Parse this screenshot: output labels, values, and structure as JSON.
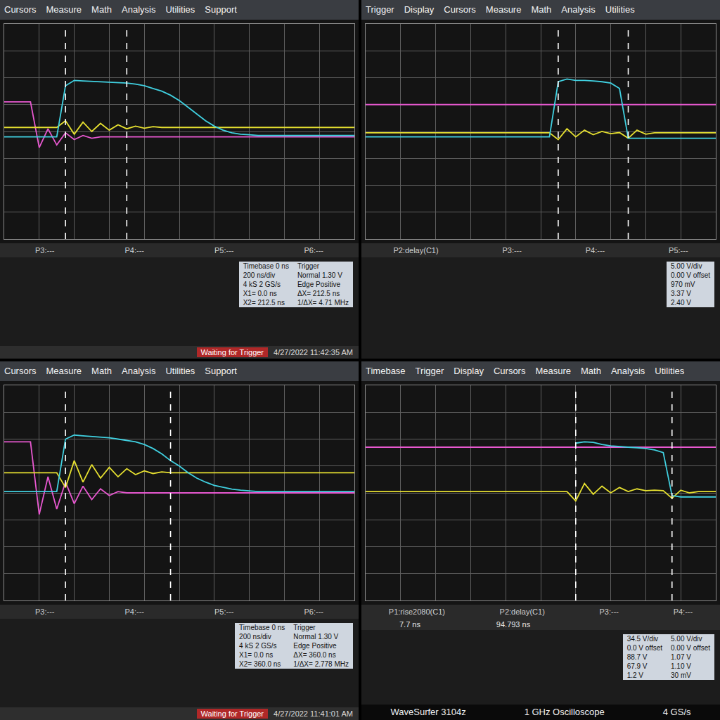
{
  "chart_data": [
    {
      "type": "line",
      "menu": [
        "Cursors",
        "Measure",
        "Math",
        "Analysis",
        "Utilities",
        "Support"
      ],
      "x": [
        0,
        0.25,
        0.5,
        0.75,
        1,
        1.25,
        1.5,
        1.75,
        2,
        2.25,
        2.5,
        2.75,
        3,
        3.25,
        3.5,
        3.75,
        4,
        4.25,
        4.5,
        4.75,
        5,
        5.25,
        5.5,
        5.75,
        6,
        6.25,
        6.5,
        6.75,
        7,
        7.25,
        7.5,
        7.75,
        8,
        8.25,
        8.5,
        8.75,
        9,
        9.25,
        9.5,
        9.75,
        10
      ],
      "xlim": [
        0,
        10
      ],
      "ylim": [
        -4,
        4
      ],
      "xticks": [
        0,
        1,
        2,
        3,
        4,
        5,
        6,
        7,
        8,
        9,
        10
      ],
      "yticks": [
        -4,
        -3,
        -2,
        -1,
        0,
        1,
        2,
        3,
        4
      ],
      "tick_labels": false,
      "grid": true,
      "cursors": [
        1.75,
        3.5
      ],
      "series": [
        {
          "color": "#e858d0",
          "values": [
            1.1,
            1.1,
            1.1,
            1.1,
            -0.6,
            0.1,
            -0.5,
            -0.05,
            -0.3,
            -0.15,
            -0.25,
            -0.2,
            -0.2,
            -0.2,
            -0.2,
            -0.2,
            -0.2,
            -0.2,
            -0.2,
            -0.2,
            -0.2,
            -0.2,
            -0.2,
            -0.2,
            -0.2,
            -0.2,
            -0.2,
            -0.2,
            -0.2,
            -0.2,
            -0.2,
            -0.2,
            -0.2,
            -0.2,
            -0.2,
            -0.2,
            -0.2,
            -0.2,
            -0.2,
            -0.2,
            -0.2
          ]
        },
        {
          "color": "#e6e030",
          "values": [
            0.15,
            0.15,
            0.15,
            0.15,
            0.15,
            0.15,
            0.15,
            0.4,
            -0.1,
            0.35,
            0.0,
            0.3,
            0.05,
            0.25,
            0.1,
            0.2,
            0.12,
            0.18,
            0.15,
            0.15,
            0.15,
            0.15,
            0.15,
            0.15,
            0.15,
            0.15,
            0.15,
            0.15,
            0.15,
            0.15,
            0.15,
            0.15,
            0.15,
            0.15,
            0.15,
            0.15,
            0.15,
            0.15,
            0.15,
            0.15,
            0.15
          ]
        },
        {
          "color": "#40d0e0",
          "values": [
            -0.2,
            -0.2,
            -0.2,
            -0.2,
            -0.2,
            -0.2,
            -0.2,
            1.7,
            1.9,
            1.88,
            1.86,
            1.85,
            1.84,
            1.82,
            1.8,
            1.76,
            1.7,
            1.6,
            1.5,
            1.35,
            1.15,
            0.9,
            0.65,
            0.4,
            0.2,
            0.05,
            -0.05,
            -0.1,
            -0.12,
            -0.15,
            -0.15,
            -0.15,
            -0.15,
            -0.15,
            -0.15,
            -0.15,
            -0.15,
            -0.15,
            -0.15,
            -0.15,
            -0.15
          ]
        }
      ],
      "footer": [
        "P3:---",
        "P4:---",
        "P5:---",
        "P6:---"
      ],
      "info": [
        [
          "Timebase 0 ns",
          "Trigger"
        ],
        [
          "200 ns/div",
          "Normal 1.30 V"
        ],
        [
          "4 kS  2 GS/s",
          "Edge Positive"
        ],
        [
          "X1= 0.0 ns",
          "ΔX= 212.5 ns"
        ],
        [
          "X2= 212.5 ns",
          "1/ΔX= 4.71 MHz"
        ]
      ],
      "status": "Waiting for Trigger",
      "timestamp": "4/27/2022 11:42:35 AM"
    },
    {
      "type": "line",
      "menu": [
        "Trigger",
        "Display",
        "Cursors",
        "Measure",
        "Math",
        "Analysis",
        "Utilities"
      ],
      "x": [
        0,
        0.25,
        0.5,
        0.75,
        1,
        1.25,
        1.5,
        1.75,
        2,
        2.25,
        2.5,
        2.75,
        3,
        3.25,
        3.5,
        3.75,
        4,
        4.25,
        4.5,
        4.75,
        5,
        5.25,
        5.5,
        5.75,
        6,
        6.25,
        6.5,
        6.75,
        7,
        7.25,
        7.5,
        7.75,
        8,
        8.25,
        8.5,
        8.75,
        9,
        9.25,
        9.5,
        9.75,
        10
      ],
      "xlim": [
        0,
        10
      ],
      "ylim": [
        -4,
        4
      ],
      "xticks": [
        0,
        1,
        2,
        3,
        4,
        5,
        6,
        7,
        8,
        9,
        10
      ],
      "yticks": [
        -4,
        -3,
        -2,
        -1,
        0,
        1,
        2,
        3,
        4
      ],
      "tick_labels": false,
      "grid": true,
      "cursors": [
        5.5,
        7.5
      ],
      "series": [
        {
          "color": "#e858d0",
          "values": [
            1.0,
            1.0,
            1.0,
            1.0,
            1.0,
            1.0,
            1.0,
            1.0,
            1.0,
            1.0,
            1.0,
            1.0,
            1.0,
            1.0,
            1.0,
            1.0,
            1.0,
            1.0,
            1.0,
            1.0,
            1.0,
            1.0,
            1.0,
            1.0,
            1.0,
            1.0,
            1.0,
            1.0,
            1.0,
            1.0,
            1.0,
            1.0,
            1.0,
            1.0,
            1.0,
            1.0,
            1.0,
            1.0,
            1.0,
            1.0,
            1.0
          ]
        },
        {
          "color": "#e6e030",
          "values": [
            -0.05,
            -0.05,
            -0.05,
            -0.05,
            -0.05,
            -0.05,
            -0.05,
            -0.05,
            -0.05,
            -0.05,
            -0.05,
            -0.05,
            -0.05,
            -0.05,
            -0.05,
            -0.05,
            -0.05,
            -0.05,
            -0.05,
            -0.05,
            -0.05,
            -0.05,
            -0.3,
            0.1,
            -0.2,
            0.05,
            -0.12,
            0.0,
            -0.08,
            -0.04,
            -0.25,
            0.05,
            -0.1,
            -0.05,
            -0.05,
            -0.05,
            -0.05,
            -0.05,
            -0.05,
            -0.05,
            -0.05
          ]
        },
        {
          "color": "#40d0e0",
          "values": [
            -0.2,
            -0.2,
            -0.2,
            -0.2,
            -0.2,
            -0.2,
            -0.2,
            -0.2,
            -0.2,
            -0.2,
            -0.2,
            -0.2,
            -0.2,
            -0.2,
            -0.2,
            -0.2,
            -0.2,
            -0.2,
            -0.2,
            -0.2,
            -0.2,
            -0.2,
            1.85,
            1.95,
            1.9,
            1.9,
            1.88,
            1.85,
            1.8,
            1.6,
            -0.25,
            -0.25,
            -0.25,
            -0.25,
            -0.25,
            -0.25,
            -0.25,
            -0.25,
            -0.25,
            -0.25,
            -0.25
          ]
        }
      ],
      "footer": [
        "P2:delay(C1)",
        "P3:---",
        "P4:---",
        "P5:---"
      ],
      "info": [
        [
          "5.00 V/div"
        ],
        [
          "0.00 V offset"
        ],
        [
          "970 mV"
        ],
        [
          "3.37 V"
        ],
        [
          "2.40 V"
        ]
      ]
    },
    {
      "type": "line",
      "menu": [
        "Cursors",
        "Measure",
        "Math",
        "Analysis",
        "Utilities",
        "Support"
      ],
      "x": [
        0,
        0.25,
        0.5,
        0.75,
        1,
        1.25,
        1.5,
        1.75,
        2,
        2.25,
        2.5,
        2.75,
        3,
        3.25,
        3.5,
        3.75,
        4,
        4.25,
        4.5,
        4.75,
        5,
        5.25,
        5.5,
        5.75,
        6,
        6.25,
        6.5,
        6.75,
        7,
        7.25,
        7.5,
        7.75,
        8,
        8.25,
        8.5,
        8.75,
        9,
        9.25,
        9.5,
        9.75,
        10
      ],
      "xlim": [
        0,
        10
      ],
      "ylim": [
        -4,
        4
      ],
      "xticks": [
        0,
        1,
        2,
        3,
        4,
        5,
        6,
        7,
        8,
        9,
        10
      ],
      "yticks": [
        -4,
        -3,
        -2,
        -1,
        0,
        1,
        2,
        3,
        4
      ],
      "tick_labels": false,
      "grid": true,
      "cursors": [
        1.75,
        4.75
      ],
      "series": [
        {
          "color": "#e858d0",
          "values": [
            1.9,
            1.9,
            1.9,
            1.9,
            -0.8,
            0.6,
            -0.6,
            0.4,
            -0.4,
            0.25,
            -0.25,
            0.15,
            -0.1,
            0.05,
            0.0,
            0.0,
            0.0,
            0.0,
            0.0,
            0.0,
            0.0,
            0.0,
            0.0,
            0.0,
            0.0,
            0.0,
            0.0,
            0.0,
            0.0,
            0.0,
            0.0,
            0.0,
            0.0,
            0.0,
            0.0,
            0.0,
            0.0,
            0.0,
            0.0,
            0.0,
            0.0
          ]
        },
        {
          "color": "#e6e030",
          "values": [
            0.75,
            0.75,
            0.75,
            0.75,
            0.75,
            0.75,
            0.75,
            0.2,
            1.2,
            0.4,
            1.05,
            0.55,
            0.95,
            0.6,
            0.9,
            0.68,
            0.82,
            0.72,
            0.78,
            0.75,
            0.75,
            0.75,
            0.75,
            0.75,
            0.75,
            0.75,
            0.75,
            0.75,
            0.75,
            0.75,
            0.75,
            0.75,
            0.75,
            0.75,
            0.75,
            0.75,
            0.75,
            0.75,
            0.75,
            0.75,
            0.75
          ]
        },
        {
          "color": "#40d0e0",
          "values": [
            0.05,
            0.05,
            0.05,
            0.05,
            0.05,
            0.05,
            0.05,
            2.0,
            2.15,
            2.12,
            2.1,
            2.08,
            2.05,
            2.0,
            1.95,
            1.9,
            1.8,
            1.65,
            1.45,
            1.2,
            1.0,
            0.75,
            0.55,
            0.4,
            0.28,
            0.2,
            0.14,
            0.1,
            0.08,
            0.05,
            0.05,
            0.05,
            0.05,
            0.05,
            0.05,
            0.05,
            0.05,
            0.05,
            0.05,
            0.05,
            0.05
          ]
        }
      ],
      "footer": [
        "P3:---",
        "P4:---",
        "P5:---",
        "P6:---"
      ],
      "info": [
        [
          "Timebase 0 ns",
          "Trigger"
        ],
        [
          "200 ns/div",
          "Normal 1.30 V"
        ],
        [
          "4 kS  2 GS/s",
          "Edge Positive"
        ],
        [
          "X1= 0.0 ns",
          "ΔX= 360.0 ns"
        ],
        [
          "X2= 360.0 ns",
          "1/ΔX= 2.778 MHz"
        ]
      ],
      "status": "Waiting for Trigger",
      "timestamp": "4/27/2022 11:41:01 AM"
    },
    {
      "type": "line",
      "menu": [
        "Timebase",
        "Trigger",
        "Display",
        "Cursors",
        "Measure",
        "Math",
        "Analysis",
        "Utilities"
      ],
      "x": [
        0,
        0.25,
        0.5,
        0.75,
        1,
        1.25,
        1.5,
        1.75,
        2,
        2.25,
        2.5,
        2.75,
        3,
        3.25,
        3.5,
        3.75,
        4,
        4.25,
        4.5,
        4.75,
        5,
        5.25,
        5.5,
        5.75,
        6,
        6.25,
        6.5,
        6.75,
        7,
        7.25,
        7.5,
        7.75,
        8,
        8.25,
        8.5,
        8.75,
        9,
        9.25,
        9.5,
        9.75,
        10
      ],
      "xlim": [
        0,
        10
      ],
      "ylim": [
        -4,
        4
      ],
      "xticks": [
        0,
        1,
        2,
        3,
        4,
        5,
        6,
        7,
        8,
        9,
        10
      ],
      "yticks": [
        -4,
        -3,
        -2,
        -1,
        0,
        1,
        2,
        3,
        4
      ],
      "tick_labels": false,
      "grid": true,
      "cursors": [
        6.0,
        8.75
      ],
      "series": [
        {
          "color": "#e858d0",
          "values": [
            1.7,
            1.7,
            1.7,
            1.7,
            1.7,
            1.7,
            1.7,
            1.7,
            1.7,
            1.7,
            1.7,
            1.7,
            1.7,
            1.7,
            1.7,
            1.7,
            1.7,
            1.7,
            1.7,
            1.7,
            1.7,
            1.7,
            1.7,
            1.7,
            1.7,
            1.7,
            1.7,
            1.7,
            1.7,
            1.7,
            1.7,
            1.7,
            1.7,
            1.7,
            1.7,
            1.7,
            1.7,
            1.7,
            1.7,
            1.7,
            1.7
          ]
        },
        {
          "color": "#e6e030",
          "values": [
            0.05,
            0.05,
            0.05,
            0.05,
            0.05,
            0.05,
            0.05,
            0.05,
            0.05,
            0.05,
            0.05,
            0.05,
            0.05,
            0.05,
            0.05,
            0.05,
            0.05,
            0.05,
            0.05,
            0.05,
            0.05,
            0.05,
            0.05,
            0.05,
            -0.3,
            0.35,
            -0.05,
            0.25,
            0.0,
            0.2,
            0.05,
            0.15,
            0.08,
            0.1,
            0.08,
            -0.2,
            0.1,
            0.0,
            0.05,
            0.05,
            0.05
          ]
        },
        {
          "color": "#40d0e0",
          "values": [
            null,
            null,
            null,
            null,
            null,
            null,
            null,
            null,
            null,
            null,
            null,
            null,
            null,
            null,
            null,
            null,
            null,
            null,
            null,
            null,
            null,
            null,
            null,
            null,
            1.85,
            1.9,
            1.88,
            1.8,
            1.75,
            1.72,
            1.7,
            1.68,
            1.65,
            1.6,
            1.5,
            -0.1,
            -0.15,
            -0.15,
            -0.15,
            -0.15,
            -0.15
          ]
        }
      ],
      "footer": [
        "P1:rise2080(C1)",
        "P2:delay(C1)",
        "P3:---",
        "P4:---"
      ],
      "readout": [
        "7.7 ns",
        "94.793 ns",
        "",
        ""
      ],
      "info": [
        [
          "34.5 V/div",
          "5.00 V/div"
        ],
        [
          "0.0 V offset",
          "0.00 V offset"
        ],
        [
          "88.7 V",
          "1.07 V"
        ],
        [
          "67.9 V",
          "1.10 V"
        ],
        [
          "1.2 V",
          "30 mV"
        ]
      ],
      "brand": [
        "WaveSurfer 3104z",
        "1 GHz Oscilloscope",
        "4 GS/s"
      ]
    }
  ]
}
